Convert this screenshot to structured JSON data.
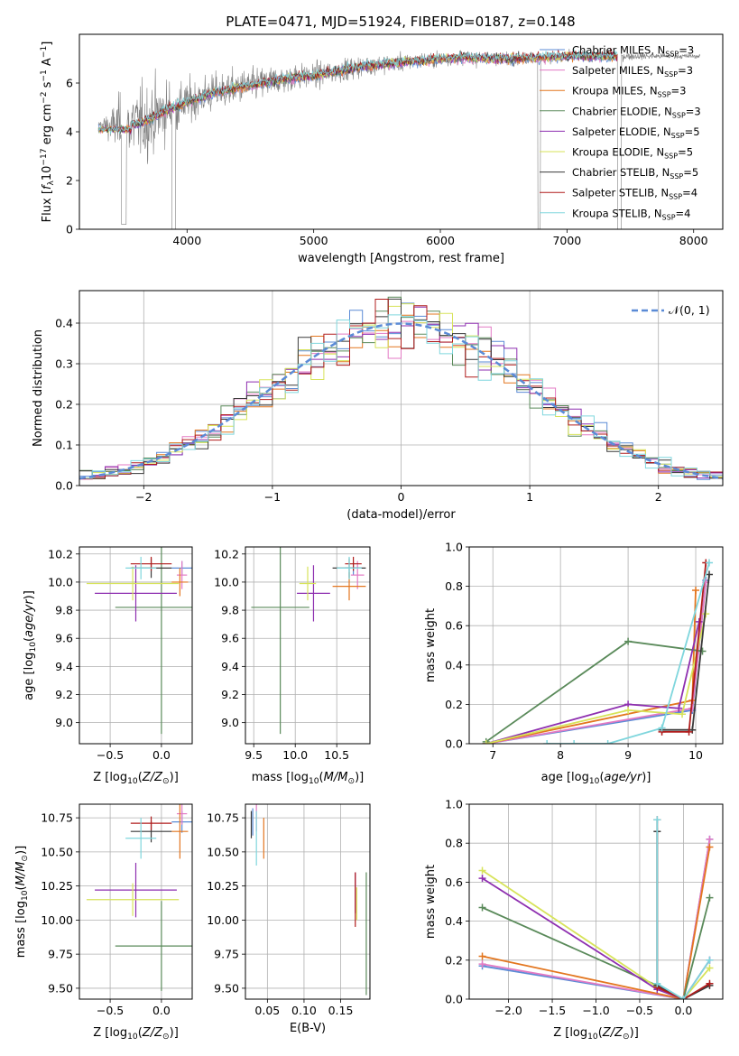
{
  "figure": {
    "title": "PLATE=0471, MJD=51924, FIBERID=0187, z=0.148"
  },
  "colors": {
    "Chabrier MILES": "#5b8bd6",
    "Salpeter MILES": "#e37ac4",
    "Kroupa MILES": "#e3761f",
    "Chabrier ELODIE": "#5a8a5a",
    "Salpeter ELODIE": "#8e2fb0",
    "Kroupa ELODIE": "#d7e35a",
    "Chabrier STELIB": "#3a3a3a",
    "Salpeter STELIB": "#b01c1c",
    "Kroupa STELIB": "#7fd6dd",
    "data": "#808080"
  },
  "chart_data": [
    {
      "id": "spectrum",
      "type": "line",
      "title": "PLATE=0471, MJD=51924, FIBERID=0187, z=0.148",
      "xlabel": "wavelength [Angstrom, rest frame]",
      "ylabel": "Flux [f_λ 10^-17 erg cm^-2 s^-1 A^-1]",
      "xlim": [
        3150,
        8230
      ],
      "ylim": [
        0,
        8
      ],
      "xticks": [
        4000,
        5000,
        6000,
        7000,
        8000
      ],
      "yticks": [
        0,
        2,
        4,
        6
      ],
      "grid": false,
      "legend_position": "right",
      "legend": [
        "Chabrier MILES, N_SSP=3",
        "Salpeter MILES, N_SSP=3",
        "Kroupa MILES, N_SSP=3",
        "Chabrier ELODIE, N_SSP=3",
        "Salpeter ELODIE, N_SSP=5",
        "Kroupa ELODIE, N_SSP=5",
        "Chabrier STELIB, N_SSP=5",
        "Salpeter STELIB, N_SSP=4",
        "Kroupa STELIB, N_SSP=4"
      ],
      "continuum": {
        "x": [
          3300,
          3400,
          3500,
          3600,
          3700,
          3800,
          3900,
          4000,
          4200,
          4400,
          4600,
          4800,
          5000,
          5200,
          5400,
          5600,
          5800,
          6000,
          6200,
          6400,
          6600,
          6800,
          7000,
          7200,
          7400
        ],
        "y": [
          4.3,
          4.2,
          4.4,
          4.3,
          4.5,
          4.8,
          5.0,
          5.2,
          5.6,
          5.8,
          6.0,
          6.2,
          6.3,
          6.5,
          6.7,
          6.8,
          6.9,
          7.0,
          7.05,
          7.0,
          7.0,
          7.05,
          7.1,
          7.1,
          7.1
        ]
      },
      "noise_sigma": [
        [
          3300,
          0.15
        ],
        [
          3500,
          1.6
        ],
        [
          3700,
          1.8
        ],
        [
          4000,
          1.0
        ],
        [
          5000,
          0.6
        ],
        [
          6000,
          0.35
        ],
        [
          7000,
          0.25
        ],
        [
          8000,
          0.1
        ]
      ],
      "data_extent": [
        3300,
        8050
      ],
      "model_extent": [
        3300,
        7400
      ]
    },
    {
      "id": "residuals",
      "type": "histogram",
      "xlabel": "(data-model)/error",
      "ylabel": "Normed distribution",
      "xlim": [
        -2.5,
        2.5
      ],
      "ylim": [
        0,
        0.48
      ],
      "xticks": [
        -2,
        -1,
        0,
        1,
        2
      ],
      "yticks": [
        0.0,
        0.1,
        0.2,
        0.3,
        0.4
      ],
      "grid": true,
      "legend": [
        "N(0,1)"
      ],
      "legend_position": "top-right",
      "bin_width": 0.1,
      "bin_start": -2.5,
      "models": [
        "Chabrier MILES",
        "Salpeter MILES",
        "Kroupa MILES",
        "Chabrier ELODIE",
        "Salpeter ELODIE",
        "Kroupa ELODIE",
        "Chabrier STELIB",
        "Salpeter STELIB",
        "Kroupa STELIB"
      ]
    },
    {
      "id": "age_vs_Z",
      "type": "scatter",
      "xlabel": "Z [log10(Z/Z☉)]",
      "ylabel": "age [log10(age/yr)]",
      "xlim": [
        -0.8,
        0.3
      ],
      "ylim": [
        8.85,
        10.25
      ],
      "xticks": [
        -0.5,
        0.0
      ],
      "yticks": [
        9.0,
        9.2,
        9.4,
        9.6,
        9.8,
        10.0,
        10.2
      ],
      "grid": true,
      "points": [
        {
          "model": "Chabrier MILES",
          "x": 0.2,
          "xerr": 0.1,
          "y": 10.1,
          "yerr": 0.05
        },
        {
          "model": "Salpeter MILES",
          "x": 0.2,
          "xerr": 0.05,
          "y": 10.05,
          "yerr": 0.1
        },
        {
          "model": "Kroupa MILES",
          "x": 0.18,
          "xerr": 0.08,
          "y": 10.0,
          "yerr": 0.1
        },
        {
          "model": "Chabrier ELODIE",
          "x": 0.0,
          "xerr": 0.45,
          "y": 9.82,
          "yerr": 0.9
        },
        {
          "model": "Salpeter ELODIE",
          "x": -0.25,
          "xerr": 0.4,
          "y": 9.92,
          "yerr": 0.2
        },
        {
          "model": "Kroupa ELODIE",
          "x": -0.28,
          "xerr": 0.45,
          "y": 9.99,
          "yerr": 0.12
        },
        {
          "model": "Chabrier STELIB",
          "x": -0.1,
          "xerr": 0.2,
          "y": 10.1,
          "yerr": 0.07
        },
        {
          "model": "Salpeter STELIB",
          "x": -0.1,
          "xerr": 0.2,
          "y": 10.13,
          "yerr": 0.05
        },
        {
          "model": "Kroupa STELIB",
          "x": -0.2,
          "xerr": 0.15,
          "y": 10.1,
          "yerr": 0.08
        }
      ]
    },
    {
      "id": "age_vs_mass",
      "type": "scatter",
      "xlabel": "mass [log10(M/M☉)]",
      "ylabel": "",
      "xlim": [
        9.4,
        10.9
      ],
      "ylim": [
        8.85,
        10.25
      ],
      "xticks": [
        9.5,
        10.0,
        10.5
      ],
      "yticks": [
        9.0,
        9.2,
        9.4,
        9.6,
        9.8,
        10.0,
        10.2
      ],
      "grid": true,
      "points": [
        {
          "model": "Chabrier MILES",
          "x": 10.7,
          "xerr": 0.1,
          "y": 10.1,
          "yerr": 0.05
        },
        {
          "model": "Salpeter MILES",
          "x": 10.75,
          "xerr": 0.08,
          "y": 10.05,
          "yerr": 0.1
        },
        {
          "model": "Kroupa MILES",
          "x": 10.65,
          "xerr": 0.2,
          "y": 9.97,
          "yerr": 0.1
        },
        {
          "model": "Chabrier ELODIE",
          "x": 9.82,
          "xerr": 0.35,
          "y": 9.82,
          "yerr": 0.9
        },
        {
          "model": "Salpeter ELODIE",
          "x": 10.22,
          "xerr": 0.2,
          "y": 9.92,
          "yerr": 0.2
        },
        {
          "model": "Kroupa ELODIE",
          "x": 10.15,
          "xerr": 0.1,
          "y": 9.99,
          "yerr": 0.12
        },
        {
          "model": "Chabrier STELIB",
          "x": 10.65,
          "xerr": 0.2,
          "y": 10.1,
          "yerr": 0.07
        },
        {
          "model": "Salpeter STELIB",
          "x": 10.7,
          "xerr": 0.1,
          "y": 10.13,
          "yerr": 0.05
        },
        {
          "model": "Kroupa STELIB",
          "x": 10.65,
          "xerr": 0.15,
          "y": 10.1,
          "yerr": 0.08
        }
      ]
    },
    {
      "id": "mass_weight_vs_age",
      "type": "line",
      "xlabel": "age [log10(age/yr)]",
      "ylabel": "mass weight",
      "xlim": [
        6.65,
        10.4
      ],
      "ylim": [
        0,
        1
      ],
      "xticks": [
        7,
        8,
        9,
        10
      ],
      "yticks": [
        0.0,
        0.2,
        0.4,
        0.6,
        0.8,
        1.0
      ],
      "grid": true,
      "series": [
        {
          "model": "Chabrier MILES",
          "x": [
            6.9,
            9.95,
            10.15
          ],
          "y": [
            0.0,
            0.17,
            0.83
          ]
        },
        {
          "model": "Salpeter MILES",
          "x": [
            6.9,
            9.95,
            10.15
          ],
          "y": [
            0.0,
            0.18,
            0.82
          ]
        },
        {
          "model": "Kroupa MILES",
          "x": [
            6.9,
            9.95,
            10.0
          ],
          "y": [
            0.0,
            0.22,
            0.78
          ]
        },
        {
          "model": "Chabrier ELODIE",
          "x": [
            6.9,
            9.0,
            10.1
          ],
          "y": [
            0.01,
            0.52,
            0.47
          ]
        },
        {
          "model": "Salpeter ELODIE",
          "x": [
            6.9,
            9.0,
            9.75,
            10.05
          ],
          "y": [
            0.0,
            0.2,
            0.18,
            0.62
          ]
        },
        {
          "model": "Kroupa ELODIE",
          "x": [
            6.9,
            9.0,
            9.8,
            10.15
          ],
          "y": [
            0.0,
            0.17,
            0.15,
            0.66
          ]
        },
        {
          "model": "Chabrier STELIB",
          "x": [
            9.5,
            9.95,
            10.2
          ],
          "y": [
            0.07,
            0.07,
            0.86
          ]
        },
        {
          "model": "Salpeter STELIB",
          "x": [
            9.5,
            9.9,
            10.15
          ],
          "y": [
            0.06,
            0.06,
            0.92
          ]
        },
        {
          "model": "Kroupa STELIB",
          "x": [
            7.8,
            8.2,
            8.7,
            9.5,
            10.2
          ],
          "y": [
            0.0,
            0.0,
            0.0,
            0.08,
            0.92
          ]
        }
      ]
    },
    {
      "id": "mass_vs_Z",
      "type": "scatter",
      "xlabel": "Z [log10(Z/Z☉)]",
      "ylabel": "mass [log10(M/M☉)]",
      "xlim": [
        -0.8,
        0.3
      ],
      "ylim": [
        9.42,
        10.85
      ],
      "xticks": [
        -0.5,
        0.0
      ],
      "yticks": [
        9.5,
        9.75,
        10.0,
        10.25,
        10.5,
        10.75
      ],
      "grid": true,
      "points": [
        {
          "model": "Chabrier MILES",
          "x": 0.2,
          "xerr": 0.1,
          "y": 10.72,
          "yerr": 0.08
        },
        {
          "model": "Salpeter MILES",
          "x": 0.2,
          "xerr": 0.05,
          "y": 10.78,
          "yerr": 0.08
        },
        {
          "model": "Kroupa MILES",
          "x": 0.18,
          "xerr": 0.08,
          "y": 10.65,
          "yerr": 0.2
        },
        {
          "model": "Chabrier ELODIE",
          "x": 0.0,
          "xerr": 0.45,
          "y": 9.81,
          "yerr": 0.33
        },
        {
          "model": "Salpeter ELODIE",
          "x": -0.25,
          "xerr": 0.4,
          "y": 10.22,
          "yerr": 0.2
        },
        {
          "model": "Kroupa ELODIE",
          "x": -0.28,
          "xerr": 0.45,
          "y": 10.15,
          "yerr": 0.12
        },
        {
          "model": "Chabrier STELIB",
          "x": -0.1,
          "xerr": 0.2,
          "y": 10.65,
          "yerr": 0.08
        },
        {
          "model": "Salpeter STELIB",
          "x": -0.1,
          "xerr": 0.2,
          "y": 10.71,
          "yerr": 0.05
        },
        {
          "model": "Kroupa STELIB",
          "x": -0.2,
          "xerr": 0.15,
          "y": 10.6,
          "yerr": 0.15
        }
      ]
    },
    {
      "id": "mass_vs_ebv",
      "type": "scatter",
      "xlabel": "E(B-V)",
      "ylabel": "",
      "xlim": [
        0.02,
        0.19
      ],
      "ylim": [
        9.42,
        10.85
      ],
      "xticks": [
        0.05,
        0.1,
        0.15
      ],
      "yticks": [
        9.5,
        9.75,
        10.0,
        10.25,
        10.5,
        10.75
      ],
      "grid": true,
      "points": [
        {
          "model": "Chabrier MILES",
          "x": 0.03,
          "y": 10.72,
          "yerr": 0.1
        },
        {
          "model": "Salpeter MILES",
          "x": 0.035,
          "y": 10.75,
          "yerr": 0.1
        },
        {
          "model": "Kroupa MILES",
          "x": 0.045,
          "y": 10.6,
          "yerr": 0.15
        },
        {
          "model": "Chabrier ELODIE",
          "x": 0.185,
          "y": 9.9,
          "yerr": 0.45
        },
        {
          "model": "Salpeter ELODIE",
          "x": 0.17,
          "y": 10.2,
          "yerr": 0.15
        },
        {
          "model": "Kroupa ELODIE",
          "x": 0.172,
          "y": 10.12,
          "yerr": 0.12
        },
        {
          "model": "Chabrier STELIB",
          "x": 0.028,
          "y": 10.7,
          "yerr": 0.1
        },
        {
          "model": "Salpeter STELIB",
          "x": 0.17,
          "y": 10.15,
          "yerr": 0.2
        },
        {
          "model": "Kroupa STELIB",
          "x": 0.035,
          "y": 10.6,
          "yerr": 0.2
        }
      ]
    },
    {
      "id": "mass_weight_vs_Z",
      "type": "line",
      "xlabel": "Z [log10(Z/Z☉)]",
      "ylabel": "mass weight",
      "xlim": [
        -2.45,
        0.45
      ],
      "ylim": [
        0,
        1
      ],
      "xticks": [
        -2.0,
        -1.5,
        -1.0,
        -0.5,
        0.0
      ],
      "yticks": [
        0.0,
        0.2,
        0.4,
        0.6,
        0.8,
        1.0
      ],
      "grid": true,
      "series": [
        {
          "model": "Chabrier MILES",
          "x": [
            -2.3,
            0.0,
            0.3
          ],
          "y": [
            0.17,
            0.0,
            0.82
          ]
        },
        {
          "model": "Salpeter MILES",
          "x": [
            -2.3,
            0.0,
            0.3
          ],
          "y": [
            0.18,
            0.0,
            0.82
          ]
        },
        {
          "model": "Kroupa MILES",
          "x": [
            -2.3,
            0.0,
            0.3
          ],
          "y": [
            0.22,
            0.0,
            0.78
          ]
        },
        {
          "model": "Chabrier ELODIE",
          "x": [
            -2.3,
            -0.3,
            0.0,
            0.3
          ],
          "y": [
            0.47,
            0.07,
            0.0,
            0.52
          ]
        },
        {
          "model": "Salpeter ELODIE",
          "x": [
            -2.3,
            -0.3,
            0.0,
            0.3
          ],
          "y": [
            0.62,
            0.05,
            0.0,
            0.2
          ]
        },
        {
          "model": "Kroupa ELODIE",
          "x": [
            -2.3,
            -0.3,
            0.0,
            0.3
          ],
          "y": [
            0.66,
            0.06,
            0.0,
            0.16
          ]
        },
        {
          "model": "Chabrier STELIB",
          "x": [
            -0.3,
            -0.3,
            0.0,
            0.3
          ],
          "y": [
            0.86,
            0.07,
            0.0,
            0.07
          ]
        },
        {
          "model": "Salpeter STELIB",
          "x": [
            -0.3,
            -0.3,
            0.0,
            0.3
          ],
          "y": [
            0.92,
            0.06,
            0.0,
            0.08
          ]
        },
        {
          "model": "Kroupa STELIB",
          "x": [
            -0.3,
            -0.3,
            0.0,
            0.3
          ],
          "y": [
            0.92,
            0.08,
            0.0,
            0.2
          ]
        }
      ]
    }
  ]
}
